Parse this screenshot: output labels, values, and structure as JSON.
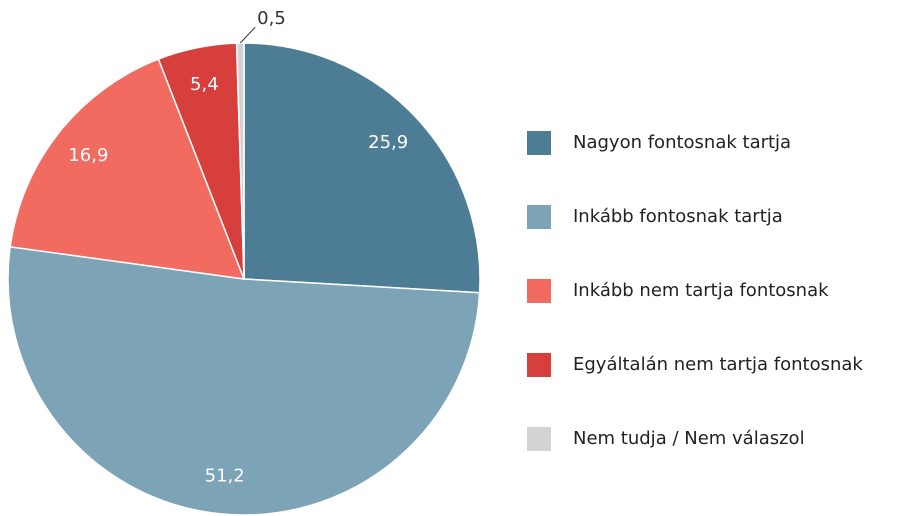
{
  "chart_data": {
    "type": "pie",
    "categories": [
      "Nagyon fontosnak tartja",
      "Inkább fontosnak tartja",
      "Inkább nem tartja fontosnak",
      "Egyáltalán nem tartja fontosnak",
      "Nem tudja / Nem válaszol"
    ],
    "values": [
      25.9,
      51.2,
      16.9,
      5.4,
      0.5
    ],
    "value_labels": [
      "25,9",
      "51,2",
      "16,9",
      "5,4",
      "0,5"
    ],
    "colors": [
      "#4d7d94",
      "#7ca3b6",
      "#f26b61",
      "#d63f3c",
      "#d3d3d3"
    ],
    "legend": "right"
  }
}
